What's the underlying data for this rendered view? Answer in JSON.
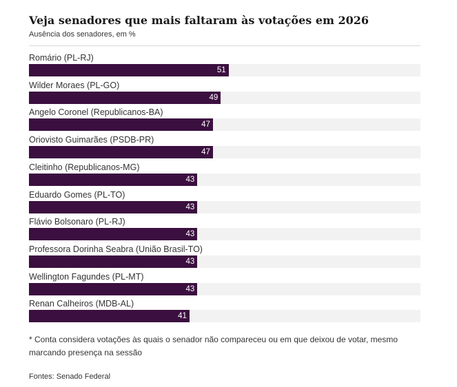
{
  "chart_data": {
    "type": "bar",
    "orientation": "horizontal",
    "title": "Veja senadores que mais faltaram às votações em 2026",
    "subtitle": "Ausência dos senadores, em %",
    "categories": [
      "Romário (PL-RJ)",
      "Wilder Moraes (PL-GO)",
      "Angelo Coronel (Republicanos-BA)",
      "Oriovisto Guimarães (PSDB-PR)",
      "Cleitinho (Republicanos-MG)",
      "Eduardo Gomes (PL-TO)",
      "Flávio Bolsonaro (PL-RJ)",
      "Professora Dorinha Seabra (União Brasil-TO)",
      "Wellington Fagundes (PL-MT)",
      "Renan Calheiros (MDB-AL)"
    ],
    "values": [
      51,
      49,
      47,
      47,
      43,
      43,
      43,
      43,
      43,
      41
    ],
    "xlim": [
      0,
      100
    ],
    "grid": false,
    "legend": "none",
    "bar_color": "#3b0f3f",
    "track_color": "#f2f2f2"
  },
  "footnote": "* Conta considera votações às quais o senador não compareceu ou em que deixou de votar, mesmo marcando presença na sessão",
  "source": "Fontes: Senado Federal"
}
